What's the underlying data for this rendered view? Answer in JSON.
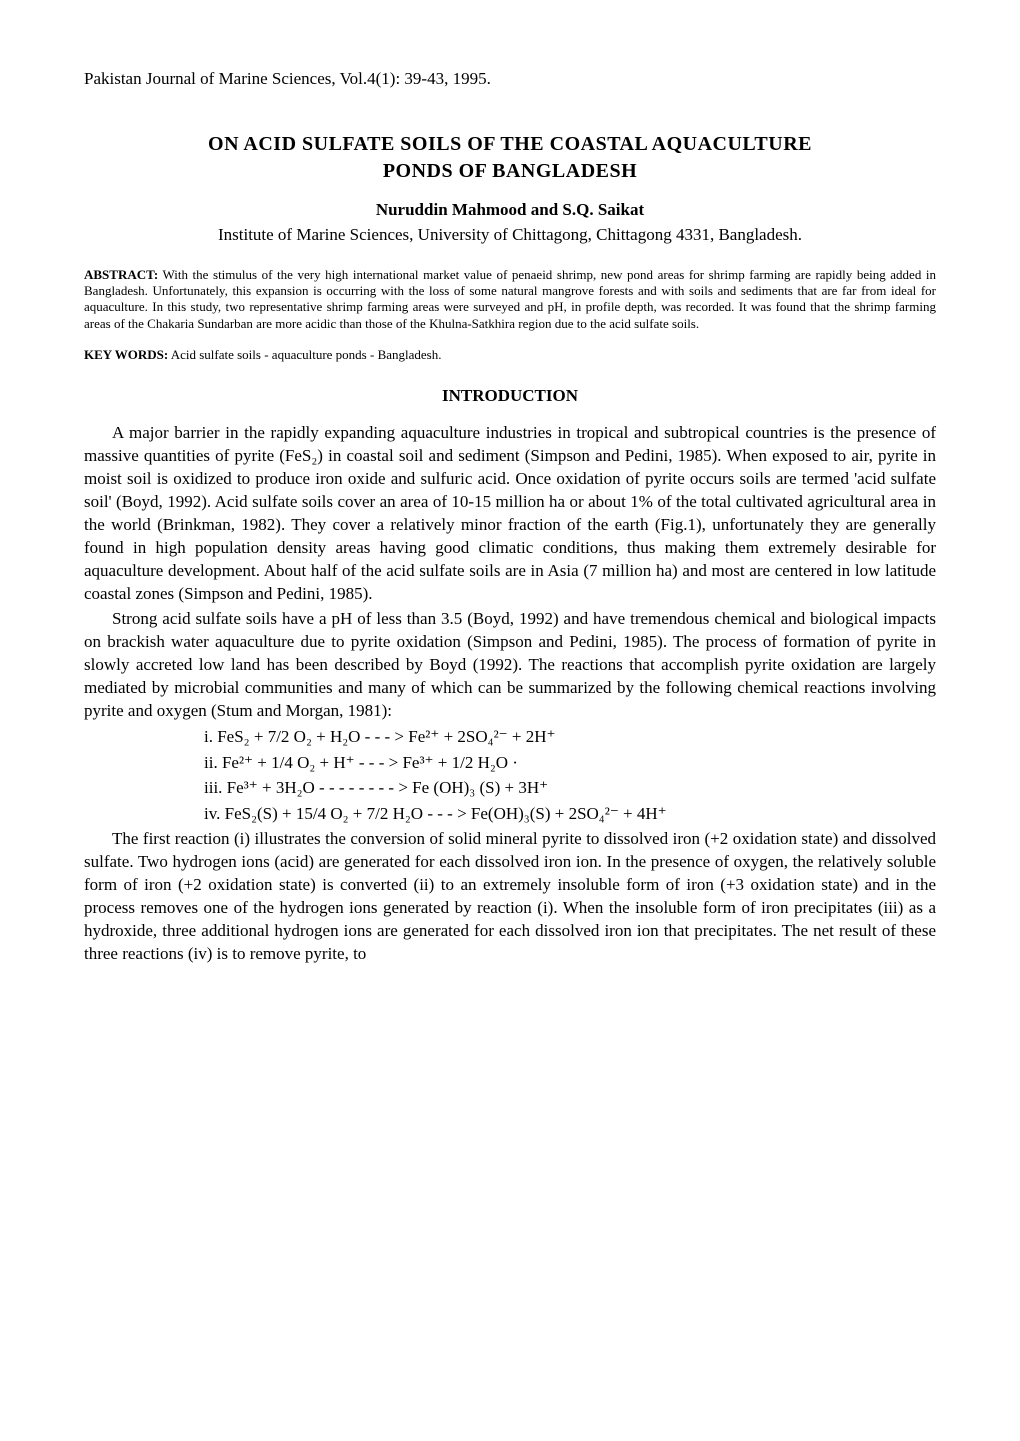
{
  "journal_line": "Pakistan Journal of Marine Sciences, Vol.4(1): 39-43, 1995.",
  "title_line1": "ON ACID SULFATE SOILS OF THE COASTAL AQUACULTURE",
  "title_line2": "PONDS OF BANGLADESH",
  "authors": "Nuruddin Mahmood and S.Q. Saikat",
  "affiliation": "Institute of Marine Sciences, University of Chittagong, Chittagong 4331, Bangladesh.",
  "abstract": {
    "label": "ABSTRACT:",
    "text": "With the stimulus of the very high international market value of penaeid shrimp, new pond areas for shrimp farming are rapidly being added in Bangladesh. Unfortunately, this expansion is occurring with the loss of some natural mangrove forests and with soils and sediments that are far from ideal for aquaculture. In this study, two representative shrimp farming areas were surveyed and pH, in profile depth, was recorded. It was found that the shrimp farming areas of the Chakaria Sundarban are more acidic than those of the Khulna-Satkhira region due to the acid sulfate soils."
  },
  "keywords": {
    "label": "KEY WORDS:",
    "text": "Acid sulfate soils - aquaculture ponds - Bangladesh."
  },
  "intro_heading": "INTRODUCTION",
  "para1": "A major barrier in the rapidly expanding aquaculture industries in tropical and subtropical countries is the presence of massive quantities of pyrite (FeS₂) in coastal soil and sediment (Simpson and Pedini, 1985). When exposed to air, pyrite in moist soil is oxidized to produce iron oxide and sulfuric acid. Once oxidation of pyrite occurs soils are termed 'acid sulfate soil' (Boyd, 1992). Acid sulfate soils cover an area of 10-15 million ha or about 1% of the total cultivated agricultural area in the world (Brinkman, 1982). They cover a relatively minor fraction of the earth (Fig.1), unfortunately they are generally found in high population density areas having good climatic conditions, thus making them extremely desirable for aquaculture development. About half of the acid sulfate soils are in Asia (7 million ha) and most are centered in low latitude coastal zones (Simpson and Pedini, 1985).",
  "para2": "Strong acid sulfate soils have a pH of less than 3.5 (Boyd, 1992) and have tremendous chemical and biological impacts on brackish water aquaculture due to pyrite oxidation (Simpson and Pedini, 1985). The process of formation of pyrite in slowly accreted low land has been described by Boyd (1992). The reactions that accomplish pyrite oxidation are largely mediated by microbial communities and many of which can be summarized by the following chemical reactions involving pyrite and oxygen (Stum and Morgan, 1981):",
  "equations": {
    "eq1": "i. FeS₂ + 7/2 O₂ + H₂O - - - > Fe²⁺ + 2SO₄²⁻ + 2H⁺",
    "eq2": "ii. Fe²⁺ + 1/4 O₂ + H⁺   - - - > Fe³⁺ + 1/2 H₂O ·",
    "eq3": "iii. Fe³⁺ + 3H₂O  - - - - - - - - > Fe (OH)₃ (S) + 3H⁺",
    "eq4": "iv. FeS₂(S) + 15/4 O₂ + 7/2 H₂O - - - > Fe(OH)₃(S) + 2SO₄²⁻ + 4H⁺"
  },
  "para3": "The first reaction (i) illustrates the conversion of solid mineral pyrite to dissolved iron (+2 oxidation state) and dissolved sulfate. Two hydrogen ions (acid) are generated for each dissolved iron ion. In the presence of oxygen, the relatively soluble form of iron (+2 oxidation state) is converted (ii) to an extremely insoluble form of iron (+3 oxidation state) and in the process removes one of the hydrogen ions generated by reaction (i). When the insoluble form of iron precipitates (iii) as a hydroxide, three additional hydrogen ions are generated for each dissolved iron ion that precipitates. The net result of these three reactions (iv) is to remove pyrite, to"
}
